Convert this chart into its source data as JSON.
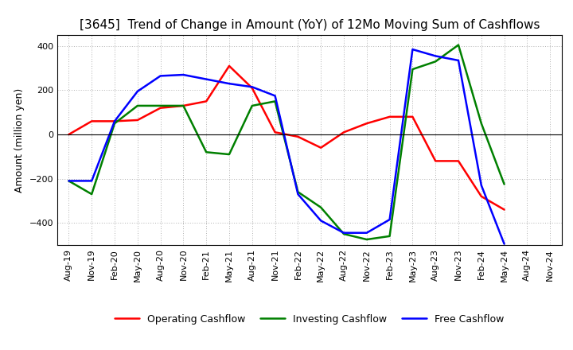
{
  "title": "[3645]  Trend of Change in Amount (YoY) of 12Mo Moving Sum of Cashflows",
  "ylabel": "Amount (million yen)",
  "x_labels": [
    "Aug-19",
    "Nov-19",
    "Feb-20",
    "May-20",
    "Aug-20",
    "Nov-20",
    "Feb-21",
    "May-21",
    "Aug-21",
    "Nov-21",
    "Feb-22",
    "May-22",
    "Aug-22",
    "Nov-22",
    "Feb-23",
    "May-23",
    "Aug-23",
    "Nov-23",
    "Feb-24",
    "May-24",
    "Aug-24",
    "Nov-24"
  ],
  "operating": [
    0,
    60,
    60,
    65,
    120,
    130,
    150,
    310,
    210,
    10,
    -10,
    -60,
    10,
    50,
    80,
    80,
    -120,
    -120,
    -280,
    -340,
    null,
    null
  ],
  "investing": [
    -210,
    -270,
    50,
    130,
    130,
    130,
    -80,
    -90,
    130,
    150,
    -260,
    -330,
    -450,
    -475,
    -460,
    295,
    330,
    405,
    50,
    -225,
    null,
    null
  ],
  "free": [
    -210,
    -210,
    60,
    195,
    265,
    270,
    250,
    230,
    215,
    175,
    -270,
    -390,
    -445,
    -445,
    -385,
    385,
    355,
    335,
    -230,
    -495,
    null,
    null
  ],
  "operating_color": "#ff0000",
  "investing_color": "#008000",
  "free_color": "#0000ff",
  "ylim": [
    -500,
    450
  ],
  "yticks": [
    -400,
    -200,
    0,
    200,
    400
  ],
  "background_color": "#ffffff",
  "grid_color": "#b0b0b0",
  "title_fontsize": 11,
  "legend_fontsize": 9,
  "axis_fontsize": 8,
  "linewidth": 1.8
}
